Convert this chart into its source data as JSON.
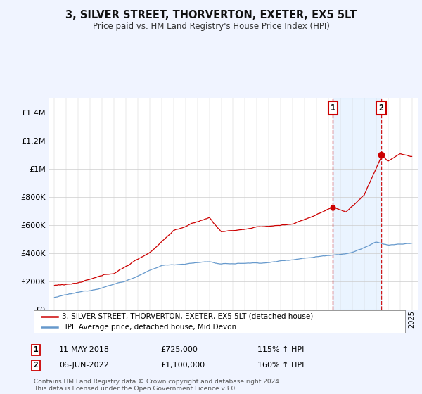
{
  "title": "3, SILVER STREET, THORVERTON, EXETER, EX5 5LT",
  "subtitle": "Price paid vs. HM Land Registry's House Price Index (HPI)",
  "legend_line1": "3, SILVER STREET, THORVERTON, EXETER, EX5 5LT (detached house)",
  "legend_line2": "HPI: Average price, detached house, Mid Devon",
  "annotation1_date": "11-MAY-2018",
  "annotation1_price": "£725,000",
  "annotation1_hpi": "115% ↑ HPI",
  "annotation2_date": "06-JUN-2022",
  "annotation2_price": "£1,100,000",
  "annotation2_hpi": "160% ↑ HPI",
  "footer": "Contains HM Land Registry data © Crown copyright and database right 2024.\nThis data is licensed under the Open Government Licence v3.0.",
  "red_color": "#cc0000",
  "blue_color": "#6699cc",
  "blue_fill": "#ddeeff",
  "background_color": "#f0f4ff",
  "plot_bg_color": "#ffffff",
  "ylim": [
    0,
    1500000
  ],
  "sale1_year": 2018.37,
  "sale1_price": 725000,
  "sale2_year": 2022.43,
  "sale2_price": 1100000
}
